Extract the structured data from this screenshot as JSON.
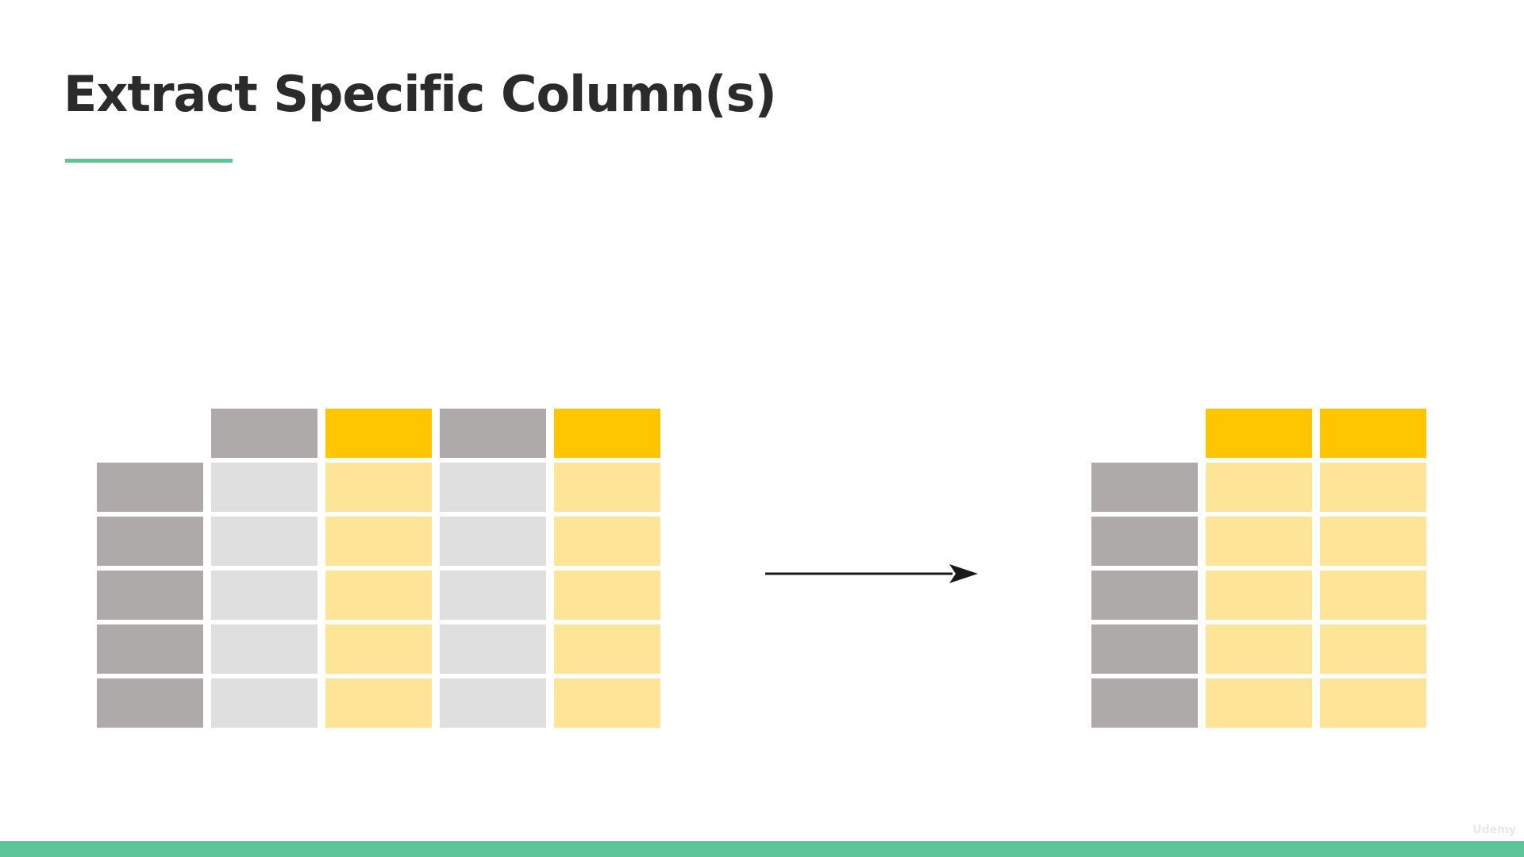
{
  "slide": {
    "title": "Extract Specific Column(s)",
    "watermark": "Udemy"
  },
  "colors": {
    "accent_green": "#5ec499",
    "title_text": "#2b2b2b",
    "index_gray": "#aeaaa9",
    "header_gray": "#aeaaa9",
    "cell_light_gray": "#e0dfdf",
    "header_yellow": "#ffc500",
    "cell_light_yellow": "#fde497",
    "arrow": "#1a1a1a"
  },
  "source_table": {
    "columns": [
      "unselected",
      "selected",
      "unselected",
      "selected"
    ],
    "row_count": 5,
    "has_index": true
  },
  "result_table": {
    "columns": [
      "selected",
      "selected"
    ],
    "row_count": 5,
    "has_index": true
  },
  "arrow": {
    "icon": "arrow-right-icon",
    "direction": "right"
  }
}
